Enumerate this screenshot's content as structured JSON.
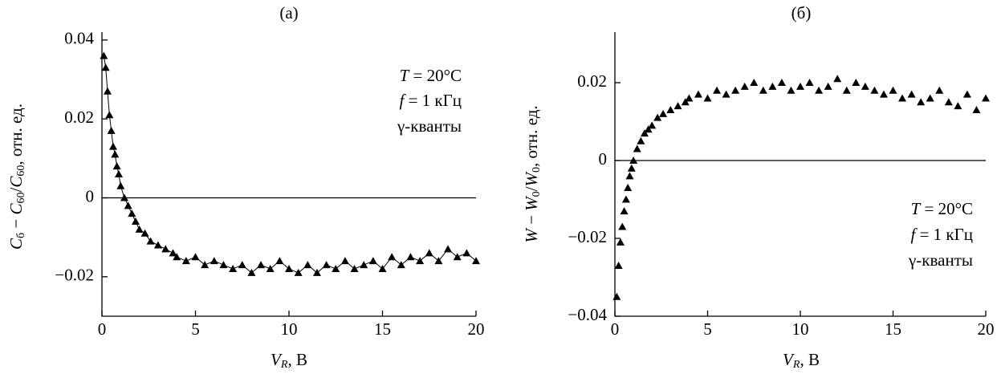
{
  "chart_data": [
    {
      "type": "scatter",
      "title": "(а)",
      "x_label": [
        "V",
        "R",
        ", В"
      ],
      "y_label": [
        "C",
        "б",
        " − ",
        "C",
        "60",
        "/",
        "C",
        "60",
        ", отн. ед."
      ],
      "annotations": [
        [
          "T",
          " = 20°C"
        ],
        [
          "f",
          " = 1 кГц"
        ],
        [
          "γ-кванты"
        ]
      ],
      "xlim": [
        0,
        20
      ],
      "xticks": [
        0,
        5,
        10,
        15,
        20
      ],
      "ylim": [
        -0.03,
        0.042
      ],
      "yticks": [
        {
          "value": -0.02,
          "label": "−0.02"
        },
        0,
        0.02,
        0.04
      ],
      "reference_line": 0,
      "series": [
        {
          "color": "#000000",
          "marker": "triangle",
          "line": true,
          "x": [
            0.1,
            0.2,
            0.3,
            0.4,
            0.5,
            0.6,
            0.7,
            0.8,
            0.9,
            1.0,
            1.2,
            1.4,
            1.6,
            1.8,
            2.0,
            2.3,
            2.6,
            3.0,
            3.4,
            3.8,
            4.0,
            4.5,
            5.0,
            5.5,
            6.0,
            6.5,
            7.0,
            7.5,
            8.0,
            8.5,
            9.0,
            9.5,
            10.0,
            10.5,
            11.0,
            11.5,
            12.0,
            12.5,
            13.0,
            13.5,
            14.0,
            14.5,
            15.0,
            15.5,
            16.0,
            16.5,
            17.0,
            17.5,
            18.0,
            18.5,
            19.0,
            19.5,
            20.0
          ],
          "values": [
            0.036,
            0.033,
            0.027,
            0.021,
            0.017,
            0.013,
            0.011,
            0.008,
            0.006,
            0.003,
            0.0,
            -0.002,
            -0.004,
            -0.006,
            -0.008,
            -0.009,
            -0.011,
            -0.012,
            -0.013,
            -0.014,
            -0.015,
            -0.016,
            -0.015,
            -0.017,
            -0.016,
            -0.017,
            -0.018,
            -0.017,
            -0.019,
            -0.017,
            -0.018,
            -0.016,
            -0.018,
            -0.019,
            -0.017,
            -0.019,
            -0.017,
            -0.018,
            -0.016,
            -0.018,
            -0.017,
            -0.016,
            -0.018,
            -0.015,
            -0.017,
            -0.015,
            -0.016,
            -0.014,
            -0.016,
            -0.013,
            -0.015,
            -0.014,
            -0.016
          ]
        }
      ]
    },
    {
      "type": "scatter",
      "title": "(б)",
      "x_label": [
        "V",
        "R",
        ", В"
      ],
      "y_label": [
        "W",
        " − ",
        "W",
        "0",
        "/",
        "W",
        "0",
        ", отн. ед."
      ],
      "annotations": [
        [
          "T",
          " = 20°C"
        ],
        [
          "f",
          " = 1 кГц"
        ],
        [
          "γ-кванты"
        ]
      ],
      "xlim": [
        0,
        20
      ],
      "xticks": [
        0,
        5,
        10,
        15,
        20
      ],
      "ylim": [
        -0.04,
        0.033
      ],
      "yticks": [
        {
          "value": -0.04,
          "label": "−0.04"
        },
        {
          "value": -0.02,
          "label": "−0.02"
        },
        0,
        0.02
      ],
      "reference_line": 0,
      "series": [
        {
          "color": "#000000",
          "marker": "triangle",
          "line": false,
          "x": [
            0.1,
            0.2,
            0.3,
            0.4,
            0.5,
            0.6,
            0.7,
            0.8,
            0.9,
            1.0,
            1.2,
            1.4,
            1.6,
            1.8,
            2.0,
            2.3,
            2.6,
            3.0,
            3.4,
            3.8,
            4.0,
            4.5,
            5.0,
            5.5,
            6.0,
            6.5,
            7.0,
            7.5,
            8.0,
            8.5,
            9.0,
            9.5,
            10.0,
            10.5,
            11.0,
            11.5,
            12.0,
            12.5,
            13.0,
            13.5,
            14.0,
            14.5,
            15.0,
            15.5,
            16.0,
            16.5,
            17.0,
            17.5,
            18.0,
            18.5,
            19.0,
            19.5,
            20.0
          ],
          "values": [
            -0.035,
            -0.027,
            -0.021,
            -0.017,
            -0.013,
            -0.01,
            -0.007,
            -0.004,
            -0.002,
            0.0,
            0.003,
            0.005,
            0.007,
            0.008,
            0.009,
            0.011,
            0.012,
            0.013,
            0.014,
            0.015,
            0.016,
            0.017,
            0.016,
            0.018,
            0.017,
            0.018,
            0.019,
            0.02,
            0.018,
            0.019,
            0.02,
            0.018,
            0.019,
            0.02,
            0.018,
            0.019,
            0.021,
            0.018,
            0.02,
            0.019,
            0.018,
            0.017,
            0.018,
            0.016,
            0.017,
            0.015,
            0.016,
            0.018,
            0.015,
            0.014,
            0.017,
            0.013,
            0.016
          ]
        }
      ]
    }
  ]
}
